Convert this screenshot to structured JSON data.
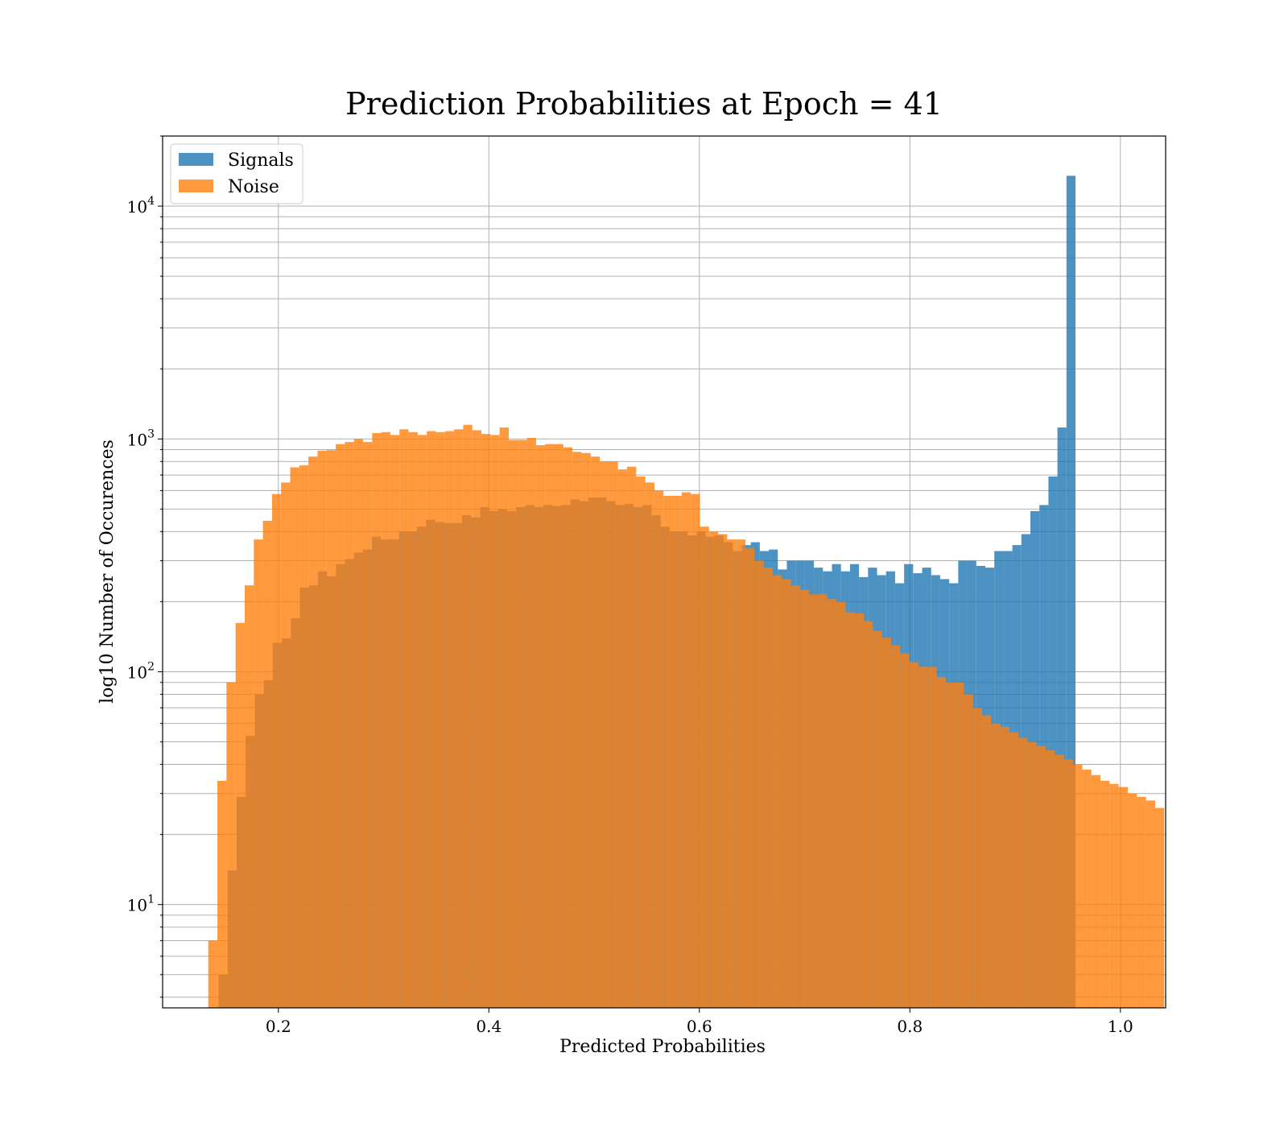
{
  "chart_data": {
    "type": "bar",
    "subtype": "histogram",
    "title": "Prediction Probabilities at Epoch = 41",
    "xlabel": "Predicted Probabilities",
    "ylabel": "log10 Number of Occurences",
    "x_scale": "linear",
    "y_scale": "log",
    "xlim": [
      0.09,
      1.043
    ],
    "ylim": [
      3.6,
      20000
    ],
    "xticks": [
      {
        "value": 0.2,
        "label": "0.2"
      },
      {
        "value": 0.4,
        "label": "0.4"
      },
      {
        "value": 0.6,
        "label": "0.6"
      },
      {
        "value": 0.8,
        "label": "0.8"
      },
      {
        "value": 1.0,
        "label": "1.0"
      }
    ],
    "yticks": [
      {
        "value": 10,
        "base": "10",
        "exp": "1"
      },
      {
        "value": 100,
        "base": "10",
        "exp": "2"
      },
      {
        "value": 1000,
        "base": "10",
        "exp": "3"
      },
      {
        "value": 10000,
        "base": "10",
        "exp": "4"
      }
    ],
    "grid": true,
    "legend_position": "top-left",
    "series": [
      {
        "name": "Signals",
        "color": "#1f77b4",
        "alpha": 0.8,
        "bin_start": 0.1432,
        "bin_width": 0.00857,
        "values": [
          5,
          14,
          29,
          53,
          80,
          92,
          133,
          139,
          170,
          230,
          235,
          270,
          257,
          290,
          305,
          325,
          335,
          380,
          370,
          370,
          400,
          400,
          420,
          450,
          440,
          435,
          435,
          470,
          460,
          510,
          490,
          500,
          490,
          510,
          520,
          510,
          520,
          515,
          520,
          550,
          540,
          560,
          560,
          540,
          520,
          525,
          510,
          520,
          470,
          420,
          400,
          400,
          385,
          400,
          380,
          385,
          360,
          330,
          350,
          360,
          330,
          335,
          275,
          300,
          300,
          300,
          280,
          270,
          290,
          270,
          290,
          255,
          280,
          260,
          270,
          240,
          290,
          265,
          280,
          260,
          250,
          240,
          300,
          300,
          285,
          280,
          330,
          330,
          350,
          390,
          490,
          520,
          690,
          1120,
          13500
        ]
      },
      {
        "name": "Noise",
        "color": "#ff7f0e",
        "alpha": 0.8,
        "bin_start": 0.1334,
        "bin_width": 0.00865,
        "values": [
          7,
          34,
          90,
          162,
          235,
          370,
          445,
          580,
          650,
          755,
          770,
          840,
          890,
          895,
          950,
          970,
          1000,
          970,
          1060,
          1070,
          1040,
          1100,
          1070,
          1040,
          1080,
          1070,
          1080,
          1100,
          1150,
          1090,
          1050,
          1040,
          1120,
          990,
          990,
          1010,
          940,
          950,
          950,
          920,
          880,
          870,
          840,
          800,
          800,
          740,
          760,
          690,
          650,
          600,
          570,
          570,
          590,
          580,
          420,
          400,
          390,
          370,
          370,
          340,
          300,
          280,
          260,
          250,
          235,
          225,
          215,
          215,
          205,
          200,
          180,
          178,
          165,
          150,
          140,
          130,
          120,
          110,
          105,
          105,
          95,
          90,
          90,
          80,
          70,
          65,
          60,
          58,
          55,
          52,
          50,
          48,
          46,
          44,
          42,
          40,
          38,
          36,
          34,
          33,
          32,
          30,
          29,
          28,
          26
        ]
      }
    ]
  }
}
